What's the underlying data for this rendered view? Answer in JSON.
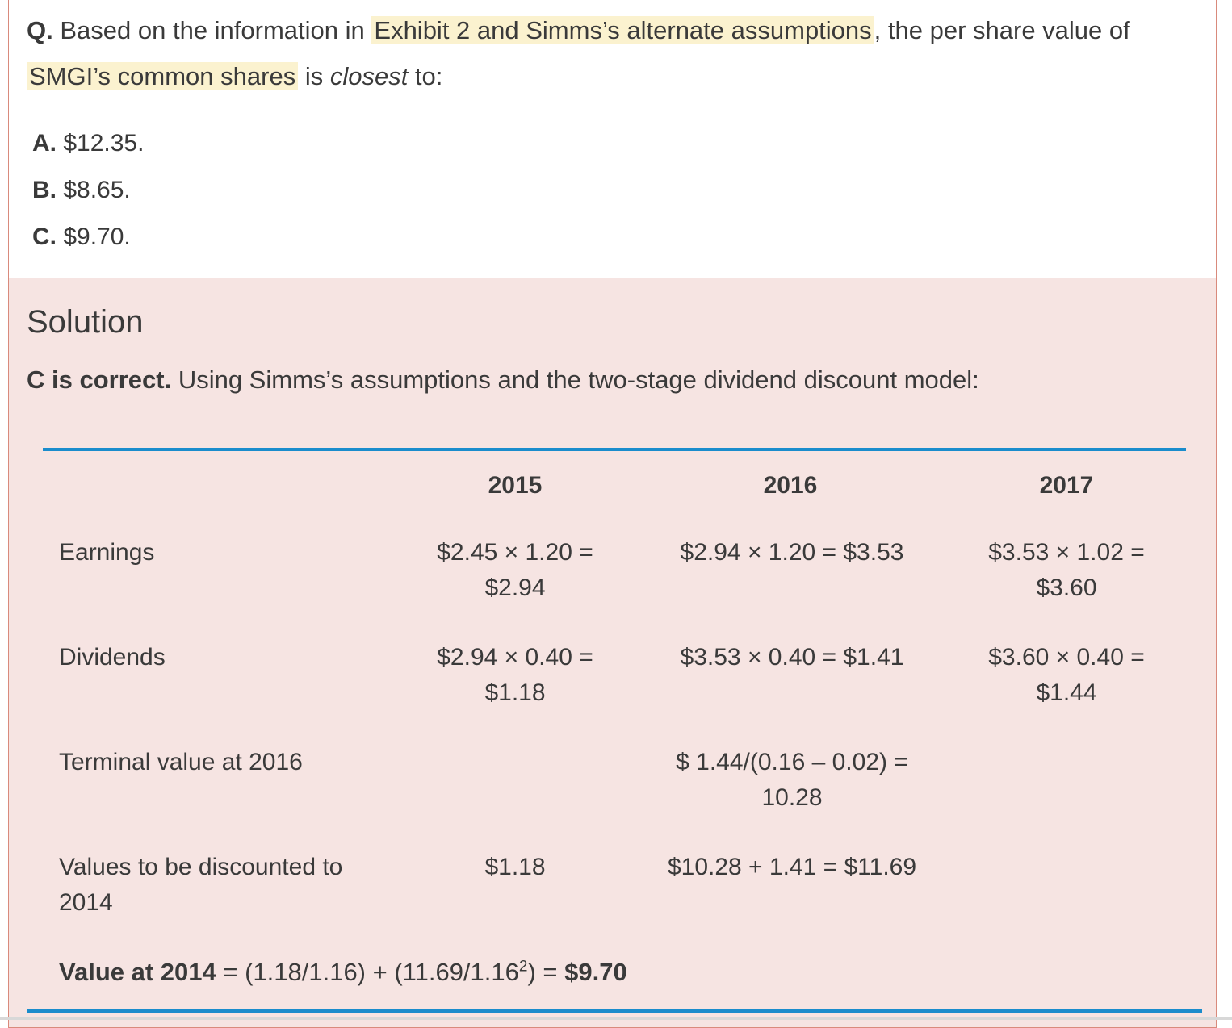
{
  "question": {
    "prefix": "Q.",
    "text_before": "Based on the information in ",
    "highlight_1": "Exhibit 2 and Simms’s alternate assumptions",
    "text_middle": ", the per share value of ",
    "highlight_2": "SMGI’s common shares",
    "text_is": " is ",
    "emphasis": "closest",
    "text_end": " to:"
  },
  "choices": [
    {
      "letter": "A.",
      "text": "$12.35."
    },
    {
      "letter": "B.",
      "text": "$8.65."
    },
    {
      "letter": "C.",
      "text": "$9.70."
    }
  ],
  "solution": {
    "heading": "Solution",
    "correct_label": "C is correct.",
    "intro": " Using Simms’s assumptions and the two-stage dividend discount model:",
    "table": {
      "columns": [
        "2015",
        "2016",
        "2017"
      ],
      "rows": [
        {
          "label": [
            "Earnings"
          ],
          "cells": [
            [
              "$2.45 × 1.20 =",
              "$2.94"
            ],
            [
              "$2.94 × 1.20 = $3.53"
            ],
            [
              "$3.53 × 1.02 =",
              "$3.60"
            ]
          ]
        },
        {
          "label": [
            "Dividends"
          ],
          "cells": [
            [
              "$2.94 × 0.40 =",
              "$1.18"
            ],
            [
              "$3.53 × 0.40 = $1.41"
            ],
            [
              "$3.60 × 0.40 =",
              "$1.44"
            ]
          ]
        },
        {
          "label": [
            "Terminal value at 2016"
          ],
          "cells": [
            [
              ""
            ],
            [
              "$ 1.44/(0.16 – 0.02) =",
              "10.28"
            ],
            [
              ""
            ]
          ]
        },
        {
          "label": [
            "Values to be discounted to",
            "2014"
          ],
          "cells": [
            [
              "$1.18"
            ],
            [
              "$10.28 + 1.41 = $11.69"
            ],
            [
              ""
            ]
          ]
        }
      ]
    },
    "value_label": "Value at 2014",
    "value_formula_a": " = (1.18/1.16) + (11.69/1.16",
    "value_exp": "2",
    "value_formula_b": ") = ",
    "value_result": "$9.70"
  }
}
